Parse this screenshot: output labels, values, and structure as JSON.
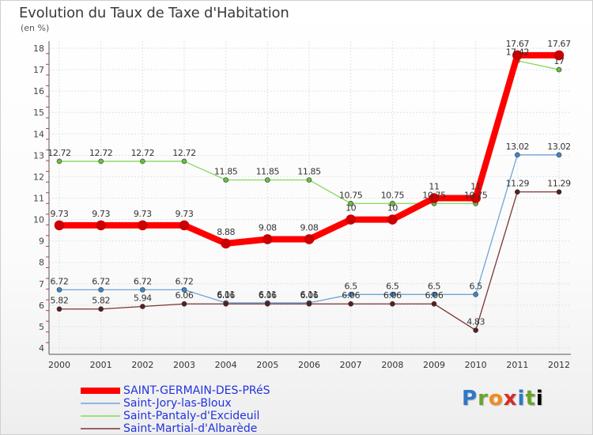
{
  "header": {
    "title": "Evolution du Taux de Taxe d'Habitation",
    "unit": "(en %)"
  },
  "logo": {
    "letters": [
      "P",
      "r",
      "o",
      "x",
      "i",
      "t",
      "i"
    ]
  },
  "chart_data": {
    "type": "line",
    "title": "Evolution du Taux de Taxe d'Habitation",
    "ylabel": "(en %)",
    "xlabel": "",
    "categories": [
      "2000",
      "2001",
      "2002",
      "2003",
      "2004",
      "2005",
      "2006",
      "2007",
      "2008",
      "2009",
      "2010",
      "2011",
      "2012"
    ],
    "ylim": [
      4,
      18
    ],
    "yticks": [
      4,
      5,
      6,
      7,
      8,
      9,
      10,
      11,
      12,
      13,
      14,
      15,
      16,
      17,
      18
    ],
    "grid": true,
    "legend_position": "bottom-left",
    "series": [
      {
        "name": "SAINT-GERMAIN-DES-PRéS",
        "color": "#ff0000",
        "marker_color": "#cc0000",
        "width": 8,
        "values": [
          9.73,
          9.73,
          9.73,
          9.73,
          8.88,
          9.08,
          9.08,
          10,
          10,
          11,
          11,
          17.67,
          17.67
        ],
        "labels": [
          "9.73",
          "9.73",
          "9.73",
          "9.73",
          "8.88",
          "9.08",
          "9.08",
          "10",
          "10",
          "11",
          "11",
          "17.67",
          "17.67"
        ]
      },
      {
        "name": "Saint-Jory-las-Bloux",
        "color": "#6fa5d6",
        "marker_color": "#3f86c6",
        "width": 1.3,
        "values": [
          6.72,
          6.72,
          6.72,
          6.72,
          6.11,
          6.11,
          6.11,
          6.5,
          6.5,
          6.5,
          6.5,
          13.02,
          13.02
        ],
        "labels": [
          "6.72",
          "6.72",
          "6.72",
          "6.72",
          "6.11",
          "6.11",
          "6.11",
          "6.5",
          "6.5",
          "6.5",
          "6.5",
          "13.02",
          "13.02"
        ]
      },
      {
        "name": "Saint-Pantaly-d'Excideuil",
        "color": "#88d85a",
        "marker_color": "#66c03c",
        "width": 1.3,
        "values": [
          12.72,
          12.72,
          12.72,
          12.72,
          11.85,
          11.85,
          11.85,
          10.75,
          10.75,
          10.75,
          10.75,
          17.42,
          17
        ],
        "labels": [
          "12.72",
          "12.72",
          "12.72",
          "12.72",
          "11.85",
          "11.85",
          "11.85",
          "10.75",
          "10.75",
          "10.75",
          "10.75",
          "17.42",
          "17"
        ]
      },
      {
        "name": "Saint-Martial-d'Albarède",
        "color": "#7a3535",
        "marker_color": "#5a1e1e",
        "width": 1.3,
        "values": [
          5.82,
          5.82,
          5.94,
          6.06,
          6.06,
          6.06,
          6.06,
          6.06,
          6.06,
          6.06,
          4.83,
          11.29,
          11.29
        ],
        "labels": [
          "5.82",
          "5.82",
          "5.94",
          "6.06",
          "6.06",
          "6.06",
          "6.06",
          "6.06",
          "6.06",
          "6.06",
          "4.83",
          "11.29",
          "11.29"
        ]
      }
    ]
  }
}
